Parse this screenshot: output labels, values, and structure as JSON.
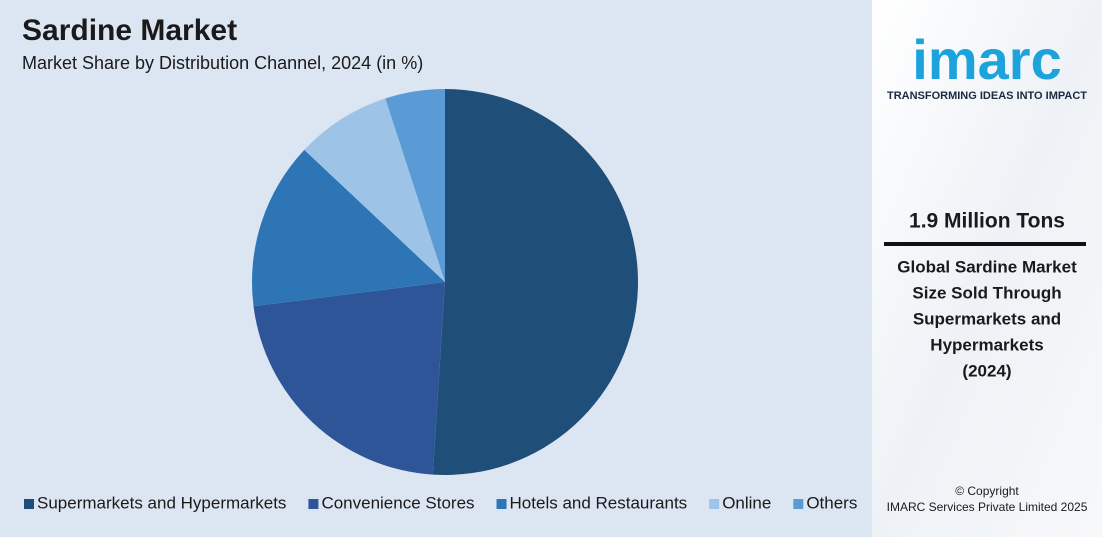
{
  "chart_data": {
    "type": "pie",
    "title": "Sardine Market",
    "subtitle": "Market Share by Distribution Channel, 2024 (in %)",
    "categories": [
      "Supermarkets and Hypermarkets",
      "Convenience Stores",
      "Hotels and Restaurants",
      "Online",
      "Others"
    ],
    "values": [
      51,
      22,
      14,
      8,
      5
    ],
    "colors": [
      "#1f4e79",
      "#2e5597",
      "#2e75b6",
      "#9dc3e6",
      "#5b9bd5"
    ],
    "legend": "bottom"
  },
  "sidebar": {
    "logo": "imarc",
    "tagline": "TRANSFORMING IDEAS INTO IMPACT",
    "highlight": "1.9 Million Tons",
    "description": [
      "Global Sardine Market",
      "Size Sold Through",
      "Supermarkets and",
      "Hypermarkets",
      "(2024)"
    ],
    "copyright": [
      "© Copyright",
      "IMARC Services Private Limited 2025"
    ]
  }
}
